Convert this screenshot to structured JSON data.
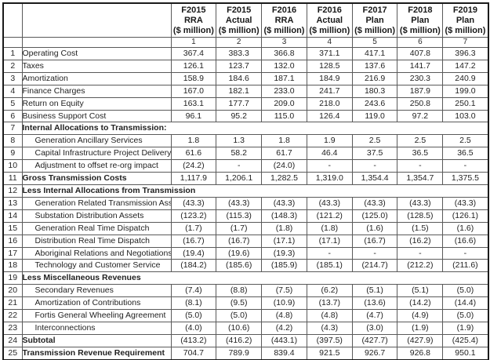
{
  "table": {
    "columns": [
      {
        "label": "F2015\nRRA\n($ million)",
        "number": "1"
      },
      {
        "label": "F2015\nActual\n($ million)",
        "number": "2"
      },
      {
        "label": "F2016\nRRA\n($ million)",
        "number": "3"
      },
      {
        "label": "F2016\nActual\n($ million)",
        "number": "4"
      },
      {
        "label": "F2017\nPlan\n($ million)",
        "number": "5"
      },
      {
        "label": "F2018\nPlan\n($ million)",
        "number": "6"
      },
      {
        "label": "F2019\nPlan\n($ million)",
        "number": "7"
      }
    ],
    "rows": [
      {
        "num": "1",
        "label": "Operating Cost",
        "style": "normal",
        "values": [
          "367.4",
          "383.3",
          "366.8",
          "371.1",
          "417.1",
          "407.8",
          "396.3"
        ]
      },
      {
        "num": "2",
        "label": "Taxes",
        "style": "normal",
        "values": [
          "126.1",
          "123.7",
          "132.0",
          "128.5",
          "137.6",
          "141.7",
          "147.2"
        ]
      },
      {
        "num": "3",
        "label": "Amortization",
        "style": "normal",
        "values": [
          "158.9",
          "184.6",
          "187.1",
          "184.9",
          "216.9",
          "230.3",
          "240.9"
        ]
      },
      {
        "num": "4",
        "label": "Finance Charges",
        "style": "normal",
        "values": [
          "167.0",
          "182.1",
          "233.0",
          "241.7",
          "180.3",
          "187.9",
          "199.0"
        ]
      },
      {
        "num": "5",
        "label": "Return on Equity",
        "style": "normal",
        "values": [
          "163.1",
          "177.7",
          "209.0",
          "218.0",
          "243.6",
          "250.8",
          "250.1"
        ]
      },
      {
        "num": "6",
        "label": "Business Support Cost",
        "style": "normal",
        "values": [
          "96.1",
          "95.2",
          "115.0",
          "126.4",
          "119.0",
          "97.2",
          "103.0"
        ]
      },
      {
        "num": "7",
        "label": "Internal Allocations to Transmission:",
        "style": "section",
        "values": []
      },
      {
        "num": "8",
        "label": "Generation Ancillary Services",
        "style": "indent",
        "values": [
          "1.8",
          "1.3",
          "1.8",
          "1.9",
          "2.5",
          "2.5",
          "2.5"
        ]
      },
      {
        "num": "9",
        "label": "Capital Infrastructure Project Delivery",
        "style": "indent",
        "values": [
          "61.6",
          "58.2",
          "61.7",
          "46.4",
          "37.5",
          "36.5",
          "36.5"
        ]
      },
      {
        "num": "10",
        "label": "Adjustment to offset re-org impact",
        "style": "indent",
        "values": [
          "(24.2)",
          "-",
          "(24.0)",
          "-",
          "-",
          "-",
          "-"
        ]
      },
      {
        "num": "11",
        "label": "Gross Transmission Costs",
        "style": "total",
        "values": [
          "1,117.9",
          "1,206.1",
          "1,282.5",
          "1,319.0",
          "1,354.4",
          "1,354.7",
          "1,375.5"
        ]
      },
      {
        "num": "12",
        "label": "Less Internal Allocations from Transmission",
        "style": "section",
        "values": []
      },
      {
        "num": "13",
        "label": "Generation Related Transmission Assets",
        "style": "indent",
        "values": [
          "(43.3)",
          "(43.3)",
          "(43.3)",
          "(43.3)",
          "(43.3)",
          "(43.3)",
          "(43.3)"
        ]
      },
      {
        "num": "14",
        "label": "Substation Distribution Assets",
        "style": "indent",
        "values": [
          "(123.2)",
          "(115.3)",
          "(148.3)",
          "(121.2)",
          "(125.0)",
          "(128.5)",
          "(126.1)"
        ]
      },
      {
        "num": "15",
        "label": "Generation Real Time Dispatch",
        "style": "indent",
        "values": [
          "(1.7)",
          "(1.7)",
          "(1.8)",
          "(1.8)",
          "(1.6)",
          "(1.5)",
          "(1.6)"
        ]
      },
      {
        "num": "16",
        "label": "Distribution Real Time Dispatch",
        "style": "indent",
        "values": [
          "(16.7)",
          "(16.7)",
          "(17.1)",
          "(17.1)",
          "(16.7)",
          "(16.2)",
          "(16.6)"
        ]
      },
      {
        "num": "17",
        "label": "Aboriginal Relations and Negotiations",
        "style": "indent",
        "values": [
          "(19.4)",
          "(19.6)",
          "(19.3)",
          "-",
          "-",
          "-",
          "-"
        ]
      },
      {
        "num": "18",
        "label": "Technology and Customer Service",
        "style": "indent",
        "values": [
          "(184.2)",
          "(185.6)",
          "(185.9)",
          "(185.1)",
          "(214.7)",
          "(212.2)",
          "(211.6)"
        ]
      },
      {
        "num": "19",
        "label": "Less Miscellaneous Revenues",
        "style": "section",
        "values": []
      },
      {
        "num": "20",
        "label": "Secondary Revenues",
        "style": "indent",
        "values": [
          "(7.4)",
          "(8.8)",
          "(7.5)",
          "(6.2)",
          "(5.1)",
          "(5.1)",
          "(5.0)"
        ]
      },
      {
        "num": "21",
        "label": "Amortization of Contributions",
        "style": "indent",
        "values": [
          "(8.1)",
          "(9.5)",
          "(10.9)",
          "(13.7)",
          "(13.6)",
          "(14.2)",
          "(14.4)"
        ]
      },
      {
        "num": "22",
        "label": "Fortis General Wheeling Agreement",
        "style": "indent",
        "values": [
          "(5.0)",
          "(5.0)",
          "(4.8)",
          "(4.8)",
          "(4.7)",
          "(4.9)",
          "(5.0)"
        ]
      },
      {
        "num": "23",
        "label": "Interconnections",
        "style": "indent",
        "values": [
          "(4.0)",
          "(10.6)",
          "(4.2)",
          "(4.3)",
          "(3.0)",
          "(1.9)",
          "(1.9)"
        ]
      },
      {
        "num": "24",
        "label": "Subtotal",
        "style": "total",
        "values": [
          "(413.2)",
          "(416.2)",
          "(443.1)",
          "(397.5)",
          "(427.7)",
          "(427.9)",
          "(425.4)"
        ]
      },
      {
        "num": "25",
        "label": "Transmission Revenue Requirement",
        "style": "total",
        "values": [
          "704.7",
          "789.9",
          "839.4",
          "921.5",
          "926.7",
          "926.8",
          "950.1"
        ]
      }
    ]
  }
}
